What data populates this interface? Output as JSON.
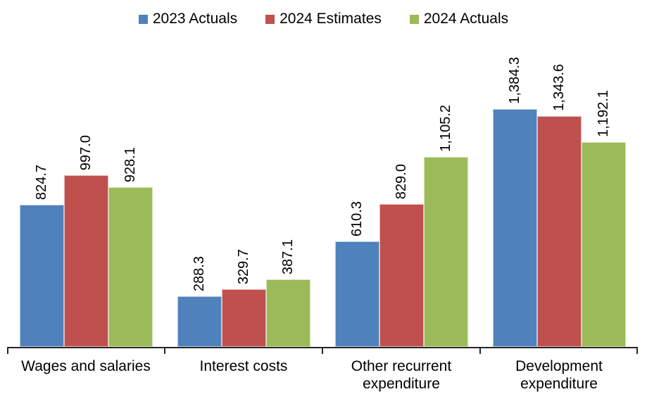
{
  "chart_data": {
    "type": "bar",
    "title": "",
    "xlabel": "",
    "ylabel": "",
    "categories": [
      "Wages and salaries",
      "Interest costs",
      "Other recurrent expenditure",
      "Development expenditure"
    ],
    "series": [
      {
        "name": "2023 Actuals",
        "color": "#4F81BD",
        "values": [
          824.7,
          288.3,
          610.3,
          1384.3
        ],
        "labels": [
          "824.7",
          "288.3",
          "610.3",
          "1,384.3"
        ]
      },
      {
        "name": "2024 Estimates",
        "color": "#C0504D",
        "values": [
          997.0,
          329.7,
          829.0,
          1343.6
        ],
        "labels": [
          "997.0",
          "329.7",
          "829.0",
          "1,343.6"
        ]
      },
      {
        "name": "2024 Actuals",
        "color": "#9BBB59",
        "values": [
          928.1,
          387.1,
          1105.2,
          1192.1
        ],
        "labels": [
          "928.1",
          "387.1",
          "1,105.2",
          "1,192.1"
        ]
      }
    ],
    "ylim": [
      0,
      1800
    ],
    "grid": false,
    "legend_position": "top",
    "data_label_rotation": 90,
    "axis_color": "#262626",
    "y_axis_visible": false
  }
}
